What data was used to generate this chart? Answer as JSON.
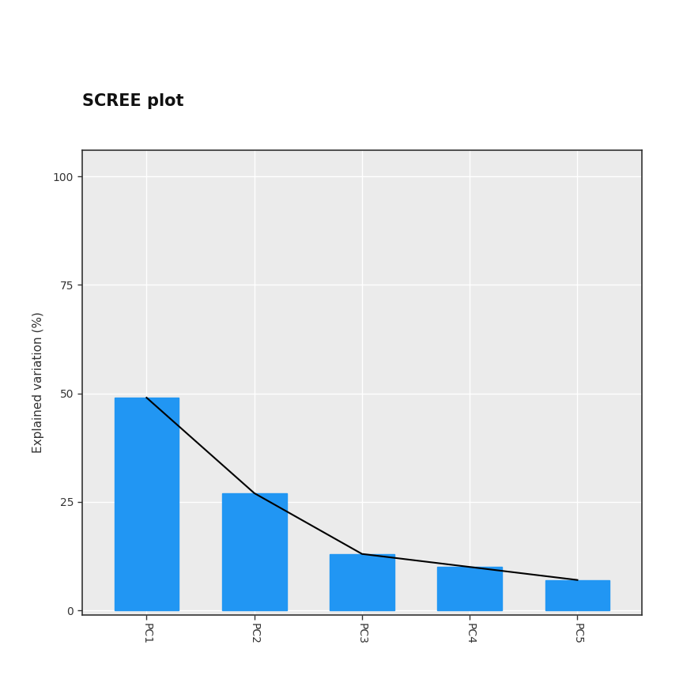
{
  "categories": [
    "PC1",
    "PC2",
    "PC3",
    "PC4",
    "PC5"
  ],
  "values": [
    49.0,
    27.0,
    13.0,
    10.0,
    7.0
  ],
  "bar_color": "#2196F3",
  "line_color": "#000000",
  "title": "SCREE plot",
  "ylabel": "Explained variation (%)",
  "ylim": [
    -1,
    106
  ],
  "yticks": [
    0,
    25,
    50,
    75,
    100
  ],
  "title_fontsize": 15,
  "axis_label_fontsize": 11,
  "tick_fontsize": 10,
  "background_color": "#ffffff",
  "plot_bg_color": "#ebebeb",
  "grid_color": "#ffffff",
  "bar_width": 0.6
}
